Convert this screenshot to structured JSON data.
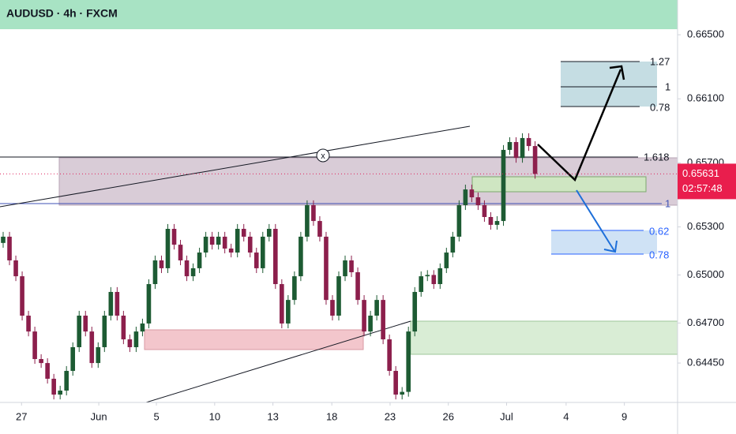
{
  "chart_data": {
    "type": "candlestick",
    "title": "AUDUSD · 4h · FXCM",
    "xlim": [
      0,
      107
    ],
    "ylim": [
      0.64204,
      0.66717
    ],
    "xticks": [
      {
        "value": 3.4,
        "label": "27"
      },
      {
        "value": 15.6,
        "label": "Jun"
      },
      {
        "value": 24.7,
        "label": "5"
      },
      {
        "value": 33.9,
        "label": "10"
      },
      {
        "value": 43.1,
        "label": "13"
      },
      {
        "value": 52.4,
        "label": "18"
      },
      {
        "value": 61.6,
        "label": "23"
      },
      {
        "value": 70.8,
        "label": "26"
      },
      {
        "value": 80,
        "label": "Jul"
      },
      {
        "value": 89.4,
        "label": "4"
      },
      {
        "value": 98.6,
        "label": "9"
      }
    ],
    "yticks": [
      {
        "value": 0.665,
        "label": "0.66500"
      },
      {
        "value": 0.661,
        "label": "0.66100"
      },
      {
        "value": 0.657,
        "label": "0.65700"
      },
      {
        "value": 0.653,
        "label": "0.65300"
      },
      {
        "value": 0.65,
        "label": "0.65000"
      },
      {
        "value": 0.647,
        "label": "0.64700"
      },
      {
        "value": 0.6445,
        "label": "0.64450"
      }
    ],
    "up_color": "#1d5b33",
    "down_color": "#8c1f4c",
    "series": {
      "open": [
        0.652,
        0.65239,
        0.65091,
        0.64992,
        0.64746,
        0.64647,
        0.64475,
        0.6445,
        0.64352,
        0.64253,
        0.64278,
        0.64401,
        0.64549,
        0.64746,
        0.64647,
        0.6445,
        0.64549,
        0.64746,
        0.64894,
        0.64746,
        0.64598,
        0.64549,
        0.64647,
        0.64697,
        0.64943,
        0.65091,
        0.65042,
        0.65288,
        0.65189,
        0.65091,
        0.64992,
        0.65042,
        0.6514,
        0.65239,
        0.65189,
        0.65239,
        0.65165,
        0.6514,
        0.65288,
        0.65239,
        0.6514,
        0.65042,
        0.65239,
        0.65288,
        0.64943,
        0.64697,
        0.64844,
        0.64992,
        0.65239,
        0.65436,
        0.65337,
        0.65239,
        0.64844,
        0.64746,
        0.64992,
        0.65091,
        0.65017,
        0.64844,
        0.64647,
        0.64746,
        0.64844,
        0.64598,
        0.64401,
        0.64253,
        0.6427,
        0.64647,
        0.64894,
        0.64992,
        0.65,
        0.64943,
        0.65042,
        0.6514,
        0.65239,
        0.65436,
        0.65534,
        0.65485,
        0.65436,
        0.65362,
        0.65313,
        0.65337,
        0.65781,
        0.6583,
        0.65731,
        0.65855,
        0.65805
      ],
      "high": [
        0.65269,
        0.65269,
        0.65121,
        0.65022,
        0.64776,
        0.64677,
        0.64505,
        0.6448,
        0.64382,
        0.64308,
        0.64431,
        0.64579,
        0.64776,
        0.64776,
        0.64677,
        0.64579,
        0.64776,
        0.64924,
        0.64924,
        0.64776,
        0.64628,
        0.64677,
        0.64727,
        0.64973,
        0.65121,
        0.65121,
        0.65318,
        0.65318,
        0.65219,
        0.65121,
        0.65072,
        0.6517,
        0.65269,
        0.65269,
        0.65269,
        0.65269,
        0.65195,
        0.65318,
        0.65318,
        0.65269,
        0.6517,
        0.65269,
        0.65318,
        0.65318,
        0.64973,
        0.64874,
        0.65022,
        0.65269,
        0.65466,
        0.65466,
        0.65367,
        0.65269,
        0.64874,
        0.65022,
        0.65121,
        0.65121,
        0.65047,
        0.64874,
        0.64776,
        0.64874,
        0.64874,
        0.64628,
        0.64431,
        0.643,
        0.64677,
        0.64924,
        0.65022,
        0.6503,
        0.6503,
        0.65072,
        0.6517,
        0.65269,
        0.65466,
        0.65564,
        0.65564,
        0.65515,
        0.65466,
        0.65392,
        0.65367,
        0.65811,
        0.6586,
        0.6586,
        0.65885,
        0.65885,
        0.65835
      ],
      "low": [
        0.6517,
        0.65061,
        0.64962,
        0.64716,
        0.64617,
        0.64445,
        0.6442,
        0.64322,
        0.64223,
        0.64223,
        0.64248,
        0.64371,
        0.64519,
        0.64617,
        0.6442,
        0.6442,
        0.64519,
        0.64716,
        0.64716,
        0.64568,
        0.64519,
        0.64519,
        0.64617,
        0.64667,
        0.64913,
        0.65012,
        0.65012,
        0.65159,
        0.65061,
        0.64962,
        0.64962,
        0.65012,
        0.6511,
        0.65159,
        0.65159,
        0.65135,
        0.6511,
        0.6511,
        0.65209,
        0.6511,
        0.65012,
        0.65012,
        0.65209,
        0.64913,
        0.64667,
        0.64667,
        0.64814,
        0.64962,
        0.65209,
        0.65307,
        0.65209,
        0.64814,
        0.64716,
        0.64716,
        0.64962,
        0.64987,
        0.64814,
        0.64617,
        0.64617,
        0.64716,
        0.64568,
        0.64371,
        0.64223,
        0.64223,
        0.6424,
        0.64617,
        0.64864,
        0.64962,
        0.64913,
        0.64913,
        0.65012,
        0.6511,
        0.65209,
        0.65406,
        0.65455,
        0.65406,
        0.65332,
        0.65283,
        0.65283,
        0.65307,
        0.65751,
        0.65701,
        0.65701,
        0.65775,
        0.65601
      ],
      "close": [
        0.65239,
        0.65091,
        0.64992,
        0.64746,
        0.64647,
        0.64475,
        0.6445,
        0.64352,
        0.64253,
        0.64278,
        0.64401,
        0.64549,
        0.64746,
        0.64647,
        0.6445,
        0.64549,
        0.64746,
        0.64894,
        0.64746,
        0.64598,
        0.64549,
        0.64647,
        0.64697,
        0.64943,
        0.65091,
        0.65042,
        0.65288,
        0.65189,
        0.65091,
        0.64992,
        0.65042,
        0.6514,
        0.65239,
        0.65189,
        0.65239,
        0.65165,
        0.6514,
        0.65288,
        0.65239,
        0.6514,
        0.65042,
        0.65239,
        0.65288,
        0.64943,
        0.64697,
        0.64844,
        0.64992,
        0.65239,
        0.65436,
        0.65337,
        0.65239,
        0.64844,
        0.64746,
        0.64992,
        0.65091,
        0.65017,
        0.64844,
        0.64647,
        0.64746,
        0.64844,
        0.64598,
        0.64401,
        0.64253,
        0.6427,
        0.64647,
        0.64894,
        0.64992,
        0.65,
        0.64943,
        0.65042,
        0.6514,
        0.65239,
        0.65436,
        0.65534,
        0.65485,
        0.65436,
        0.65362,
        0.65313,
        0.65337,
        0.65781,
        0.6583,
        0.65731,
        0.65855,
        0.65805,
        0.65631
      ]
    },
    "last_price": {
      "value": 0.65631,
      "label": "0.65631"
    },
    "countdown": "02:57:48",
    "annotations": {
      "fib_upper": [
        "1.27",
        "1",
        "0.78"
      ],
      "fib_mid": [
        "1.618",
        "1"
      ],
      "fib_lower": [
        "0.62",
        "0.78"
      ],
      "marker": "x"
    }
  }
}
